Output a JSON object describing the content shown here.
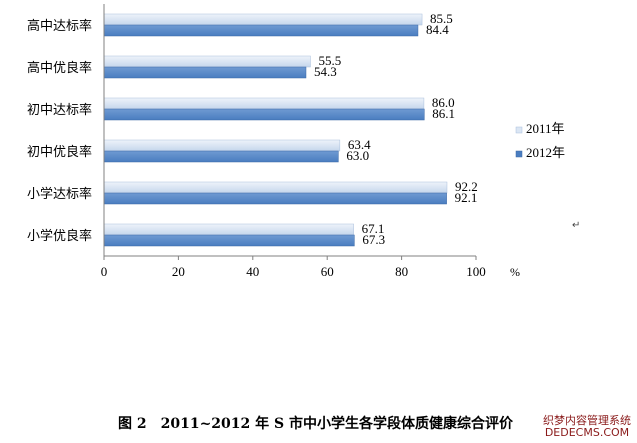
{
  "chart_data": {
    "type": "bar",
    "orientation": "horizontal",
    "categories": [
      "高中达标率",
      "高中优良率",
      "初中达标率",
      "初中优良率",
      "小学达标率",
      "小学优良率"
    ],
    "series": [
      {
        "name": "2011年",
        "values": [
          85.5,
          55.5,
          86.0,
          63.4,
          92.2,
          67.1
        ],
        "value_labels": [
          "85.5",
          "55.5",
          "86.0",
          "63.4",
          "92.2",
          "67.1"
        ],
        "color": "#c5d6ec"
      },
      {
        "name": "2012年",
        "values": [
          84.4,
          54.3,
          86.1,
          63.0,
          92.1,
          67.3
        ],
        "value_labels": [
          "84.4",
          "54.3",
          "86.1",
          "63.0",
          "92.1",
          "67.3"
        ],
        "color": "#4a7dc0"
      }
    ],
    "xticks": [
      "0",
      "20",
      "40",
      "60",
      "80",
      "100"
    ],
    "xlim": [
      0,
      100
    ],
    "xlabel": "%",
    "grid": false,
    "legend_position": "right"
  },
  "caption": "图 2　2011~2012 年 S 市中小学生各学段体质健康综合评价",
  "watermark": [
    "织梦内容管理系统",
    "DEDECMS.COM"
  ],
  "pilcrow": "↵"
}
